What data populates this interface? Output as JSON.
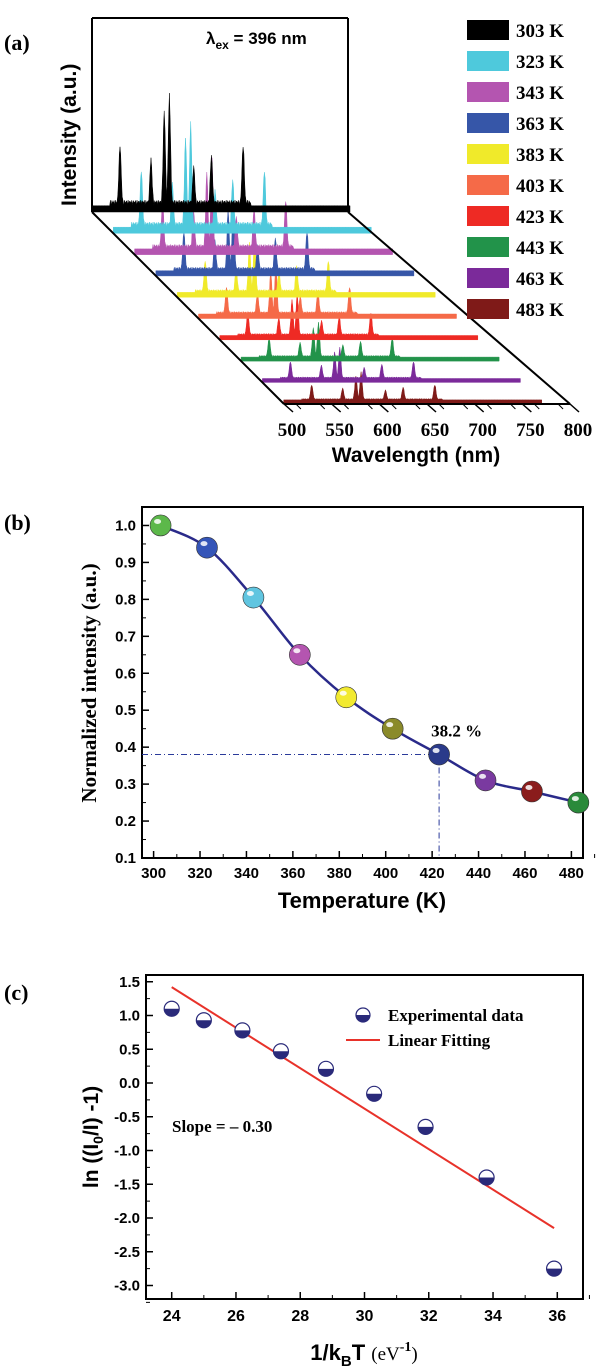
{
  "chart_data": [
    {
      "panel_label": "(a)",
      "type": "area",
      "annotation": "λex = 396 nm",
      "annotation_main": "λ",
      "annotation_sub": "ex",
      "annotation_rest": " = 396 nm",
      "xlabel": "Wavelength (nm)",
      "ylabel": "Intensity (a.u.)",
      "x_ticks": [
        "500",
        "550",
        "600",
        "650",
        "700",
        "750",
        "800"
      ],
      "xlim": [
        450,
        800
      ],
      "peaks_nm": [
        488,
        530,
        548,
        555,
        588,
        612,
        655
      ],
      "peaks_relative": [
        0.55,
        0.42,
        0.85,
        1.0,
        0.35,
        0.45,
        0.55
      ],
      "series": [
        {
          "name": "303 K",
          "color": "#000000",
          "scale": 1.0
        },
        {
          "name": "323 K",
          "color": "#4ec9dc",
          "scale": 0.94
        },
        {
          "name": "343 K",
          "color": "#b455b0",
          "scale": 0.81
        },
        {
          "name": "363 K",
          "color": "#3656a8",
          "scale": 0.65
        },
        {
          "name": "383 K",
          "color": "#f0ea2a",
          "scale": 0.53
        },
        {
          "name": "403 K",
          "color": "#f56a48",
          "scale": 0.45
        },
        {
          "name": "423 K",
          "color": "#ee2a24",
          "scale": 0.38
        },
        {
          "name": "443 K",
          "color": "#22934a",
          "scale": 0.31
        },
        {
          "name": "463 K",
          "color": "#7b2a9a",
          "scale": 0.28
        },
        {
          "name": "483 K",
          "color": "#7f1a18",
          "scale": 0.25
        }
      ],
      "legend_position": "right"
    },
    {
      "panel_label": "(b)",
      "type": "line",
      "xlabel": "Temperature (K)",
      "ylabel": "Normalized intensity (a.u.)",
      "xlim": [
        295,
        485
      ],
      "ylim": [
        0.1,
        1.05
      ],
      "x_ticks": [
        300,
        320,
        340,
        360,
        380,
        400,
        420,
        440,
        460,
        480
      ],
      "y_ticks": [
        0.1,
        0.2,
        0.3,
        0.4,
        0.5,
        0.6,
        0.7,
        0.8,
        0.9,
        1.0
      ],
      "x": [
        303,
        323,
        343,
        363,
        383,
        403,
        423,
        443,
        463,
        483
      ],
      "y": [
        1.0,
        0.94,
        0.805,
        0.65,
        0.535,
        0.45,
        0.38,
        0.31,
        0.28,
        0.25
      ],
      "point_colors": [
        "#5cb84a",
        "#3555b8",
        "#60c5e0",
        "#b455b0",
        "#f2ea30",
        "#8a8a2a",
        "#2a3a8a",
        "#7a3aa0",
        "#8a1c1c",
        "#2a8a3a"
      ],
      "line_color": "#2a2a8a",
      "annotation": "38.2 %",
      "marked_point": {
        "x": 423,
        "y": 0.38
      }
    },
    {
      "panel_label": "(c)",
      "type": "scatter",
      "xlabel_main": "1/k",
      "xlabel_sub": "B",
      "xlabel_T": "T ",
      "xlabel_unit": "(eV",
      "xlabel_sup": "-1",
      "xlabel_close": ")",
      "ylabel_pre": "ln ((I",
      "ylabel_sub": "0",
      "ylabel_post": "/I) -1)",
      "xlim": [
        23.2,
        36.8
      ],
      "ylim": [
        -3.2,
        1.6
      ],
      "x_ticks": [
        24,
        26,
        28,
        30,
        32,
        34,
        36
      ],
      "y_ticks": [
        1.5,
        1.0,
        0.5,
        0.0,
        -0.5,
        -1.0,
        -1.5,
        -2.0,
        -2.5,
        -3.0
      ],
      "y_tick_labels": [
        "1.5",
        "1.0",
        "0.5",
        "0.0",
        "-0.5",
        "-1.0",
        "-1.5",
        "-2.0",
        "-2.5",
        "-3.0"
      ],
      "series": [
        {
          "name": "Experimental data",
          "x": [
            24.0,
            25.0,
            26.2,
            27.4,
            28.8,
            30.3,
            31.9,
            33.8,
            35.9
          ],
          "y": [
            1.1,
            0.93,
            0.78,
            0.47,
            0.21,
            -0.16,
            -0.65,
            -1.4,
            -2.75
          ],
          "color": "#2a2a7a"
        },
        {
          "name": "Linear Fitting",
          "x": [
            24.0,
            35.9
          ],
          "y": [
            1.42,
            -2.15
          ],
          "color": "#e8322a"
        }
      ],
      "annotation": "Slope = – 0.30",
      "legend_position": "top-right"
    }
  ]
}
